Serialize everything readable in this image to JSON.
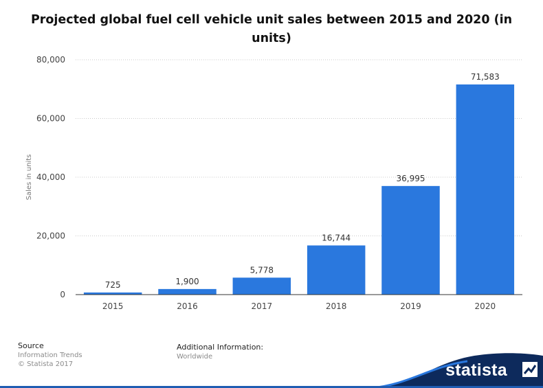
{
  "chart_data": {
    "type": "bar",
    "title": "Projected global fuel cell vehicle unit sales between 2015 and 2020 (in units)",
    "xlabel": "",
    "ylabel": "Sales in units",
    "categories": [
      "2015",
      "2016",
      "2017",
      "2018",
      "2019",
      "2020"
    ],
    "values": [
      725,
      1900,
      5778,
      16744,
      36995,
      71583
    ],
    "data_labels": [
      "725",
      "1,900",
      "5,778",
      "16,744",
      "36,995",
      "71,583"
    ],
    "ylim": [
      0,
      80000
    ],
    "yticks": [
      0,
      20000,
      40000,
      60000,
      80000
    ],
    "ytick_labels": [
      "0",
      "20,000",
      "40,000",
      "60,000",
      "80,000"
    ],
    "grid": true,
    "bar_color": "#2a78de"
  },
  "footer": {
    "source_heading": "Source",
    "source_name": "Information Trends",
    "copyright": "© Statista 2017",
    "additional_heading": "Additional Information:",
    "additional_value": "Worldwide"
  },
  "brand": {
    "name": "statista",
    "accent_color": "#1f5cb2"
  }
}
